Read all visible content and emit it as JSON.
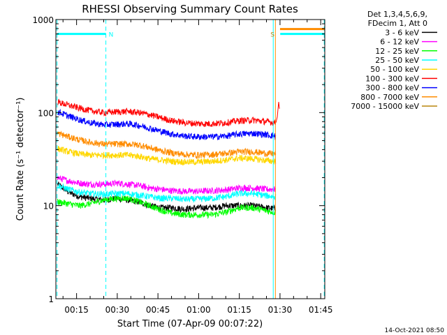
{
  "chart_data": {
    "type": "line",
    "title": "RHESSI Observing Summary Count Rates",
    "xlabel": "Start Time (07-Apr-09 00:07:22)",
    "ylabel": "Count Rate (s⁻¹ detector⁻¹)",
    "footer": "14-Oct-2021 08:50",
    "legend_header": [
      "Det 1,3,4,5,6,9,",
      "FDecim 1, Att 0"
    ],
    "legend_position": "top-right",
    "y_scale": "log",
    "ylim": [
      1,
      1000
    ],
    "y_ticks": [
      {
        "value": 1,
        "label": "1"
      },
      {
        "value": 10,
        "label": "10"
      },
      {
        "value": 100,
        "label": "100"
      },
      {
        "value": 1000,
        "label": "1000"
      }
    ],
    "xlim": [
      7.37,
      106.5
    ],
    "x_unit": "minutes after 00:00 UT",
    "x_ticks": [
      {
        "value": 15,
        "label": "00:15"
      },
      {
        "value": 30,
        "label": "00:30"
      },
      {
        "value": 45,
        "label": "00:45"
      },
      {
        "value": 60,
        "label": "01:00"
      },
      {
        "value": 75,
        "label": "01:15"
      },
      {
        "value": 90,
        "label": "01:30"
      },
      {
        "value": 105,
        "label": "01:45"
      }
    ],
    "markers": [
      {
        "type": "N",
        "label": "N",
        "start": 7.8,
        "end": 25.8,
        "color": "#00ffff"
      },
      {
        "type": "S",
        "label": "S",
        "start": 87.5,
        "end": 106.3,
        "color": "#00ffff"
      }
    ],
    "marker_s_color": "#ff8c00",
    "series": [
      {
        "name": "3 - 6 keV",
        "color": "#000000",
        "x": [
          8,
          12,
          16,
          20,
          25,
          30,
          34,
          38,
          42,
          46,
          50,
          55,
          60,
          65,
          70,
          75,
          80,
          85,
          88
        ],
        "values": [
          17,
          14,
          12.5,
          12,
          11.5,
          12,
          11.5,
          11,
          10,
          9.5,
          9.5,
          9.2,
          9.5,
          9.5,
          10,
          10,
          10,
          9.5,
          9.3
        ]
      },
      {
        "name": "6 - 12 keV",
        "color": "#ff00ff",
        "x": [
          8,
          12,
          16,
          20,
          25,
          30,
          34,
          38,
          42,
          46,
          50,
          55,
          60,
          65,
          70,
          75,
          80,
          85,
          88
        ],
        "values": [
          20,
          18.5,
          17.5,
          17,
          17,
          17.5,
          17,
          16.5,
          15.5,
          15,
          14.5,
          14.3,
          14.3,
          14.5,
          14.8,
          15.5,
          15.5,
          15,
          15
        ]
      },
      {
        "name": "12 - 25 keV",
        "color": "#00ff00",
        "x": [
          8,
          12,
          16,
          20,
          25,
          30,
          34,
          38,
          42,
          46,
          50,
          55,
          60,
          65,
          70,
          75,
          80,
          85,
          88
        ],
        "values": [
          11,
          10.5,
          10,
          10.5,
          11.5,
          12,
          12,
          11,
          10,
          9,
          8.3,
          8,
          8,
          8,
          8.5,
          9.5,
          9.5,
          8.8,
          8.5
        ]
      },
      {
        "name": "25 - 50 keV",
        "color": "#00ffff",
        "x": [
          8,
          12,
          16,
          20,
          25,
          30,
          34,
          38,
          42,
          46,
          50,
          55,
          60,
          65,
          70,
          75,
          80,
          85,
          88
        ],
        "values": [
          16.5,
          15,
          14,
          13.5,
          13.3,
          13.5,
          13.5,
          13,
          12.5,
          12,
          12,
          11.7,
          11.8,
          12,
          12.5,
          13.5,
          13.5,
          12.8,
          12.5
        ]
      },
      {
        "name": "50 - 100 keV",
        "color": "#ffd700",
        "x": [
          8,
          12,
          16,
          20,
          25,
          30,
          34,
          38,
          42,
          46,
          50,
          55,
          60,
          65,
          70,
          75,
          80,
          85,
          88
        ],
        "values": [
          41,
          38,
          36,
          35,
          35,
          35,
          35,
          34,
          32,
          31,
          30,
          29.5,
          29.5,
          30,
          31,
          32.5,
          32,
          30.5,
          30
        ]
      },
      {
        "name": "100 - 300 keV",
        "color": "#ff0000",
        "x": [
          8,
          12,
          16,
          20,
          25,
          30,
          34,
          38,
          42,
          46,
          50,
          55,
          60,
          65,
          70,
          75,
          80,
          85,
          88
        ],
        "values": [
          130,
          120,
          112,
          105,
          100,
          102,
          103,
          100,
          95,
          88,
          82,
          78,
          76,
          76,
          78,
          82,
          83,
          80,
          78
        ]
      },
      {
        "name": "300 - 800 keV",
        "color": "#0000ff",
        "x": [
          8,
          12,
          16,
          20,
          25,
          30,
          34,
          38,
          42,
          46,
          50,
          55,
          60,
          65,
          70,
          75,
          80,
          85,
          88
        ],
        "values": [
          102,
          92,
          84,
          78,
          74,
          75,
          76,
          73,
          68,
          63,
          59,
          56,
          55,
          55,
          56,
          59,
          60,
          58,
          56
        ]
      },
      {
        "name": "800 - 7000 keV",
        "color": "#ff8c00",
        "x": [
          8,
          12,
          16,
          20,
          25,
          30,
          34,
          38,
          42,
          46,
          50,
          55,
          60,
          65,
          70,
          75,
          80,
          85,
          88
        ],
        "values": [
          60,
          55,
          51,
          48,
          46,
          46,
          46,
          45,
          42,
          39,
          37,
          35.5,
          35,
          35.5,
          36.5,
          38,
          38,
          36.5,
          36
        ]
      },
      {
        "name": "7000 - 15000 keV",
        "color": "#b8860b",
        "x": [],
        "values": []
      }
    ]
  }
}
